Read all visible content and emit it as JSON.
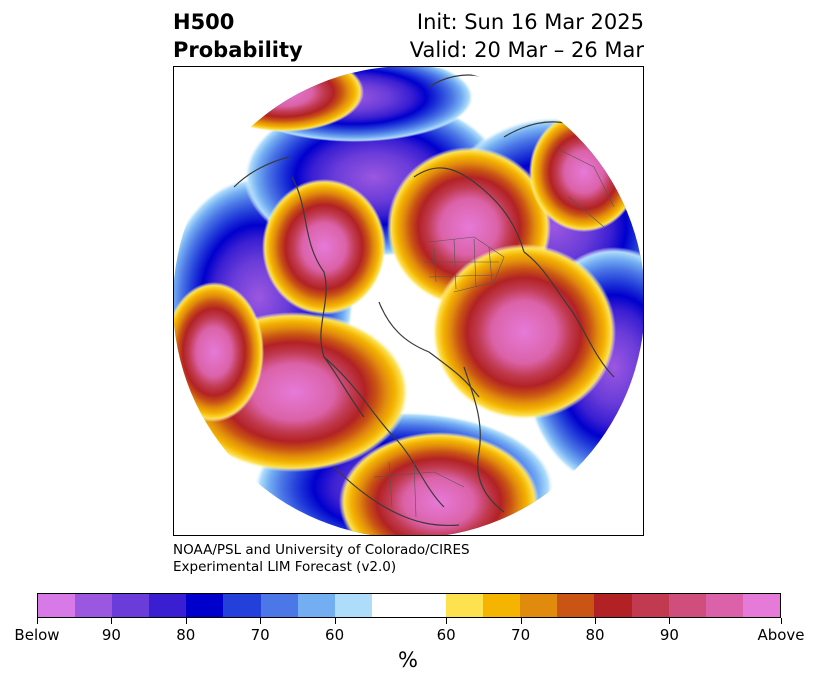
{
  "header": {
    "variable": "H500",
    "product": "Probability",
    "init": "Init: Sun 16 Mar 2025",
    "valid": "Valid: 20 Mar – 26 Mar"
  },
  "credit": {
    "line1": "NOAA/PSL and University of Colorado/CIRES",
    "line2": "Experimental LIM Forecast (v2.0)"
  },
  "map": {
    "projection": "north-polar-stereographic",
    "features": [
      "coastlines",
      "country-borders",
      "state-borders"
    ],
    "anomalies": [
      {
        "sign": "above",
        "region": "Western Russia / Eastern Europe",
        "peak_category": "Above"
      },
      {
        "sign": "above",
        "region": "Greenland / Canadian Arctic",
        "peak_category": "Above"
      },
      {
        "sign": "above",
        "region": "Northeast Pacific",
        "peak_category": "Above"
      },
      {
        "sign": "above",
        "region": "Eastern United States",
        "peak_category": "Above"
      },
      {
        "sign": "above",
        "region": "East Siberia",
        "peak_category": "90"
      },
      {
        "sign": "below",
        "region": "Western Siberia / Kara Sea",
        "peak_category": "Below"
      },
      {
        "sign": "below",
        "region": "North Atlantic / Northwest Europe",
        "peak_category": "Below"
      },
      {
        "sign": "below",
        "region": "Western United States",
        "peak_category": "Below"
      },
      {
        "sign": "below",
        "region": "Western Pacific",
        "peak_category": "Below"
      }
    ]
  },
  "colorbar": {
    "unit": "%",
    "tick_labels": [
      "Below",
      "90",
      "80",
      "70",
      "60",
      "60",
      "70",
      "80",
      "90",
      "Above"
    ],
    "colors": [
      "#d779e6",
      "#9b57e0",
      "#6a3cd9",
      "#3a1fd2",
      "#0000cd",
      "#2440da",
      "#4c77e6",
      "#73adf2",
      "#aedcfb",
      "#ffffff",
      "#fde14e",
      "#f4b400",
      "#e08a0e",
      "#c95413",
      "#b22224",
      "#c13a50",
      "#cf4e7c",
      "#db62a8",
      "#e67ad8"
    ]
  }
}
